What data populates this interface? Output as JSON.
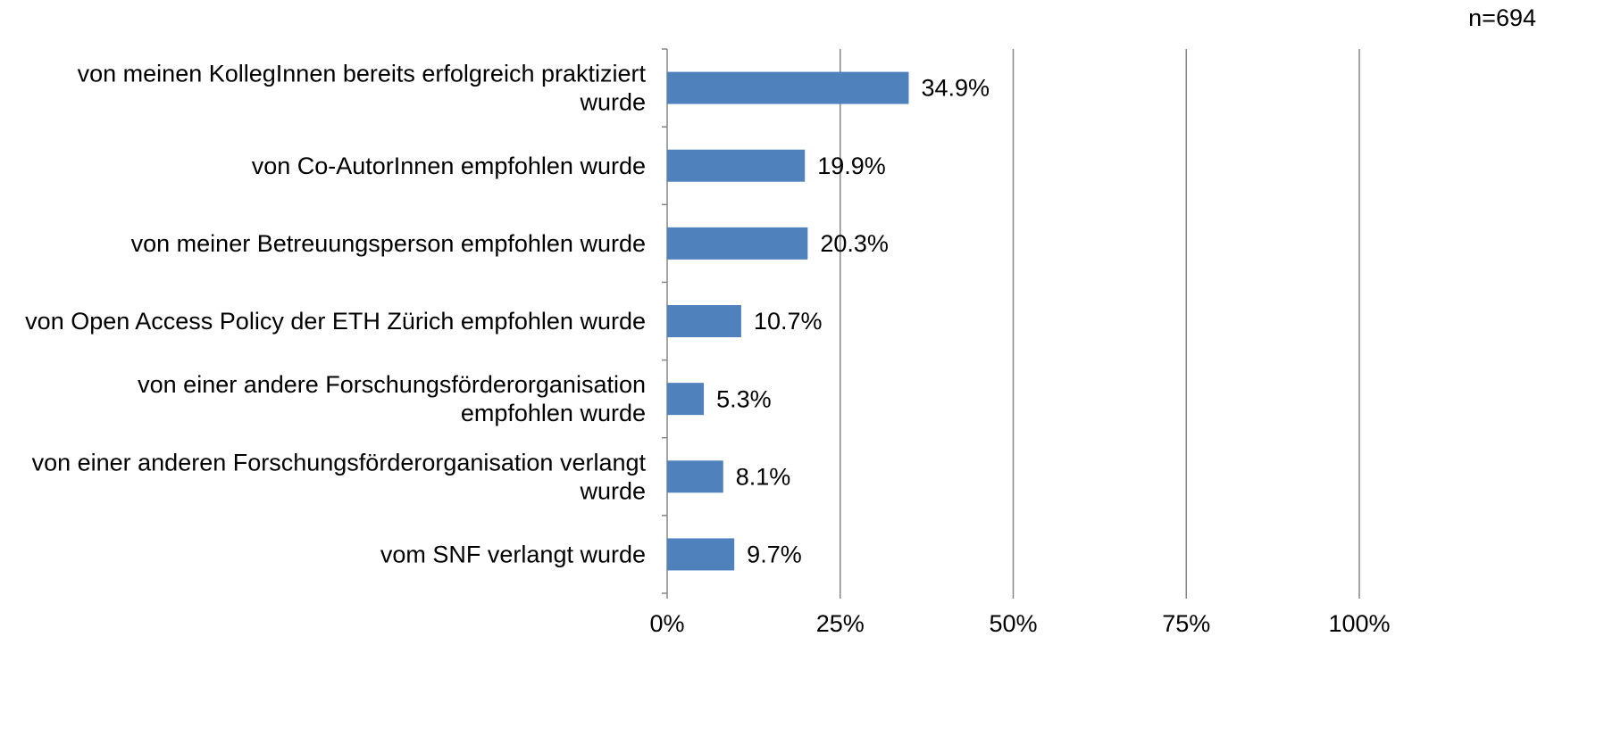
{
  "chart_data": {
    "type": "hbar",
    "annotation": "n=694",
    "categories": [
      "von meinen KollegInnen bereits erfolgreich praktiziert\nwurde",
      "von Co-AutorInnen empfohlen wurde",
      "von meiner Betreuungsperson empfohlen wurde",
      "von Open Access Policy der ETH Zürich empfohlen wurde",
      "von einer andere Forschungsförderorganisation\nempfohlen wurde",
      "von einer anderen Forschungsförderorganisation verlangt\nwurde",
      "vom SNF verlangt wurde"
    ],
    "values": [
      34.9,
      19.9,
      20.3,
      10.7,
      5.3,
      8.1,
      9.7
    ],
    "value_labels": [
      "34.9%",
      "19.9%",
      "20.3%",
      "10.7%",
      "5.3%",
      "8.1%",
      "9.7%"
    ],
    "color": "#4f81bd",
    "xlim": [
      0,
      100
    ],
    "xticks": [
      {
        "value": 0,
        "label": "0%"
      },
      {
        "value": 25,
        "label": "25%"
      },
      {
        "value": 50,
        "label": "50%"
      },
      {
        "value": 75,
        "label": "75%"
      },
      {
        "value": 100,
        "label": "100%"
      }
    ],
    "grid": true
  }
}
